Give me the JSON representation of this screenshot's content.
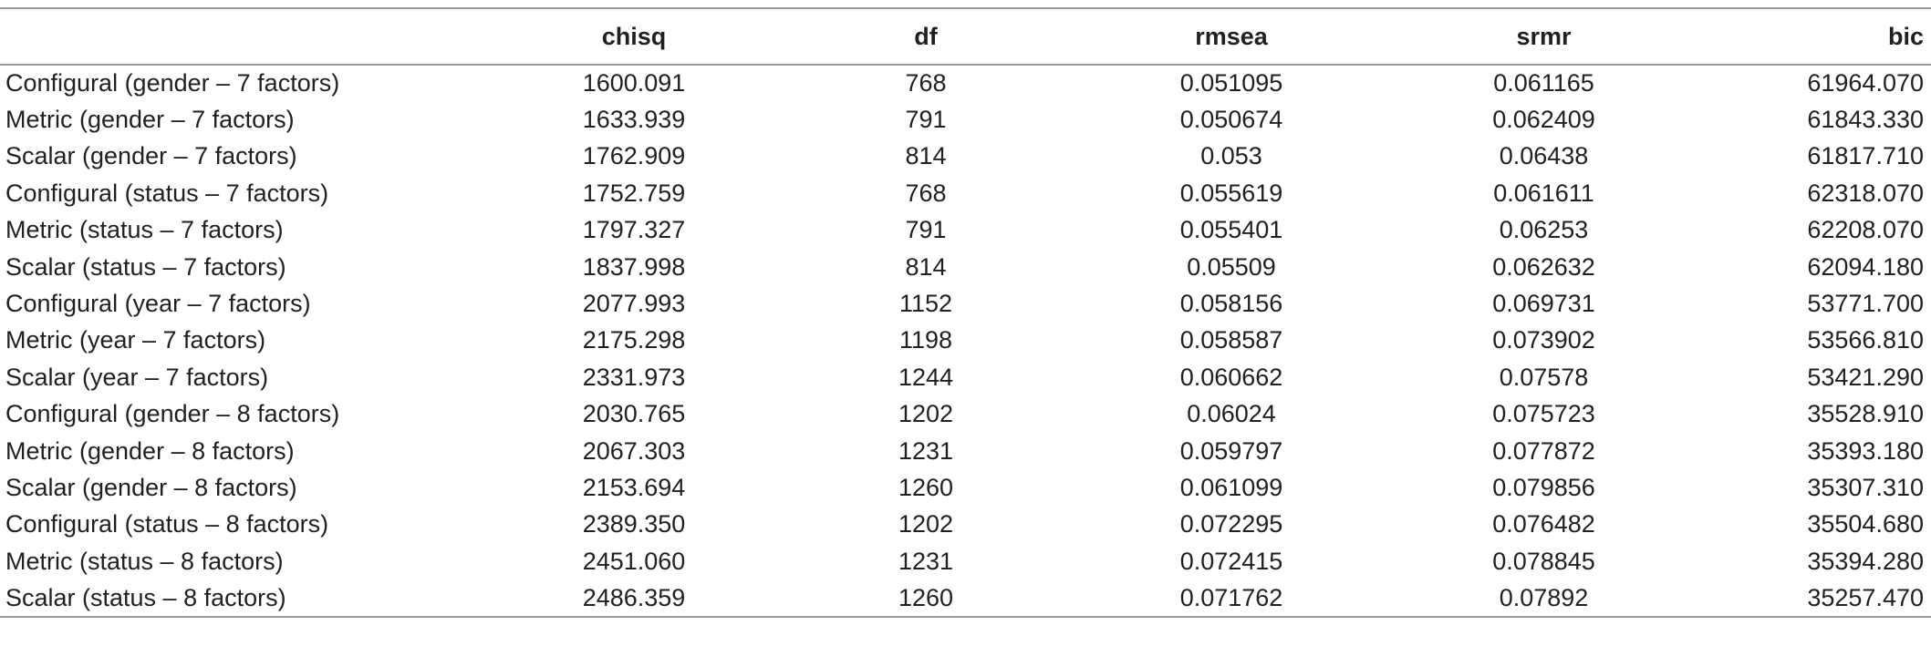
{
  "table": {
    "headers": [
      "",
      "chisq",
      "df",
      "rmsea",
      "srmr",
      "bic"
    ],
    "rows": [
      [
        "Configural (gender – 7 factors)",
        "1600.091",
        "768",
        "0.051095",
        "0.061165",
        "61964.070"
      ],
      [
        "Metric (gender – 7 factors)",
        "1633.939",
        "791",
        "0.050674",
        "0.062409",
        "61843.330"
      ],
      [
        "Scalar (gender – 7 factors)",
        "1762.909",
        "814",
        "0.053",
        "0.06438",
        "61817.710"
      ],
      [
        "Configural (status – 7 factors)",
        "1752.759",
        "768",
        "0.055619",
        "0.061611",
        "62318.070"
      ],
      [
        "Metric (status – 7 factors)",
        "1797.327",
        "791",
        "0.055401",
        "0.06253",
        "62208.070"
      ],
      [
        "Scalar (status – 7 factors)",
        "1837.998",
        "814",
        "0.05509",
        "0.062632",
        "62094.180"
      ],
      [
        "Configural (year – 7 factors)",
        "2077.993",
        "1152",
        "0.058156",
        "0.069731",
        "53771.700"
      ],
      [
        "Metric (year – 7 factors)",
        "2175.298",
        "1198",
        "0.058587",
        "0.073902",
        "53566.810"
      ],
      [
        "Scalar (year – 7 factors)",
        "2331.973",
        "1244",
        "0.060662",
        "0.07578",
        "53421.290"
      ],
      [
        "Configural (gender – 8 factors)",
        "2030.765",
        "1202",
        "0.06024",
        "0.075723",
        "35528.910"
      ],
      [
        "Metric (gender – 8 factors)",
        "2067.303",
        "1231",
        "0.059797",
        "0.077872",
        "35393.180"
      ],
      [
        "Scalar (gender – 8 factors)",
        "2153.694",
        "1260",
        "0.061099",
        "0.079856",
        "35307.310"
      ],
      [
        "Configural (status – 8 factors)",
        "2389.350",
        "1202",
        "0.072295",
        "0.076482",
        "35504.680"
      ],
      [
        "Metric (status – 8 factors)",
        "2451.060",
        "1231",
        "0.072415",
        "0.078845",
        "35394.280"
      ],
      [
        "Scalar (status – 8 factors)",
        "2486.359",
        "1260",
        "0.071762",
        "0.07892",
        "35257.470"
      ]
    ]
  }
}
